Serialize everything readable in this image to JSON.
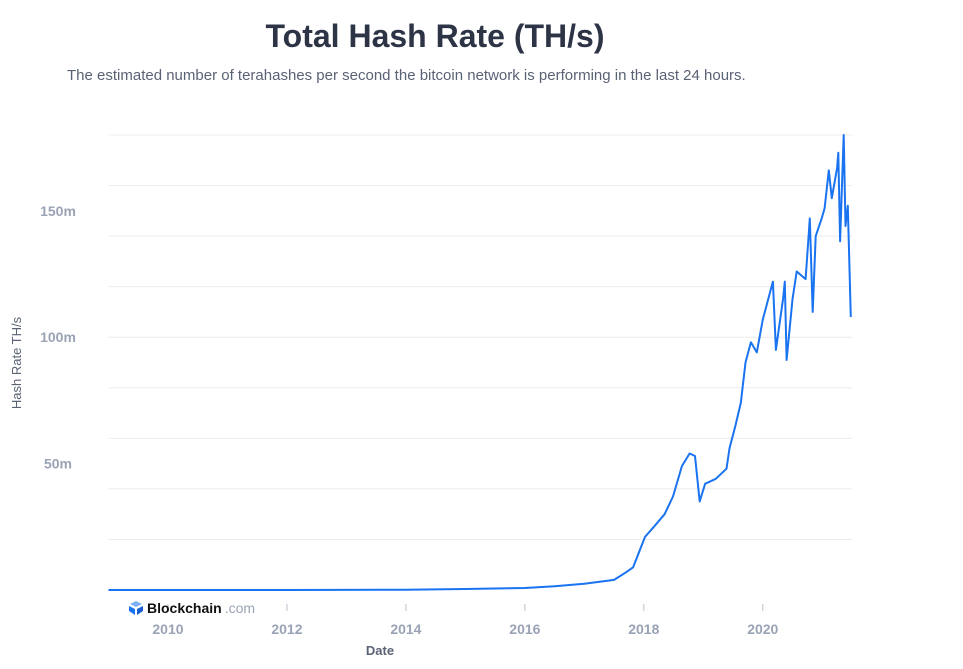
{
  "title": "Total Hash Rate (TH/s)",
  "subtitle": "The estimated number of terahashes per second the bitcoin network is performing in the last 24 hours.",
  "logo": {
    "name": "Blockchain",
    "domain": ".com"
  },
  "colors": {
    "line": "#1a73f0",
    "grid": "#ececec",
    "tick_text": "#9aa3b5",
    "axis_title": "#5a6275"
  },
  "chart_data": {
    "type": "line",
    "title": "Total Hash Rate (TH/s)",
    "xlabel": "Date",
    "ylabel": "Hash Rate TH/s",
    "xlim": [
      2009.0,
      2021.5
    ],
    "ylim": [
      0,
      180
    ],
    "y_unit": "million TH/s",
    "grid": true,
    "x_ticks": [
      {
        "value": 2010,
        "label": "2010"
      },
      {
        "value": 2012,
        "label": "2012"
      },
      {
        "value": 2014,
        "label": "2014"
      },
      {
        "value": 2016,
        "label": "2016"
      },
      {
        "value": 2018,
        "label": "2018"
      },
      {
        "value": 2020,
        "label": "2020"
      }
    ],
    "y_ticks": [
      {
        "value": 50,
        "label": "50m"
      },
      {
        "value": 100,
        "label": "100m"
      },
      {
        "value": 150,
        "label": "150m"
      }
    ],
    "series": [
      {
        "x": [
          2009.0,
          2012.0,
          2014.0,
          2015.0,
          2016.0,
          2016.5,
          2017.0,
          2017.5,
          2017.7,
          2017.82,
          2018.02,
          2018.17,
          2018.35,
          2018.49,
          2018.64,
          2018.77,
          2018.86,
          2018.94,
          2019.03,
          2019.21,
          2019.39,
          2019.44,
          2019.54,
          2019.63,
          2019.71,
          2019.8,
          2019.9,
          2020.0,
          2020.17,
          2020.22,
          2020.34,
          2020.37,
          2020.4,
          2020.5,
          2020.57,
          2020.72,
          2020.77,
          2020.79,
          2020.84,
          2020.89,
          2020.99,
          2021.04,
          2021.11,
          2021.16,
          2021.25,
          2021.27,
          2021.3,
          2021.36,
          2021.39,
          2021.43,
          2021.48
        ],
        "y": [
          0,
          0,
          0.1,
          0.4,
          0.8,
          1.5,
          2.5,
          4,
          7,
          9,
          21,
          25,
          30,
          37,
          49,
          54,
          53,
          35,
          42,
          44,
          48,
          56,
          65,
          74,
          90,
          98,
          94,
          107,
          122,
          95,
          115,
          122,
          91,
          115,
          126,
          123,
          140,
          147,
          110,
          140,
          147,
          151,
          166,
          155,
          167,
          173,
          138,
          180,
          144,
          152,
          108
        ]
      }
    ]
  }
}
